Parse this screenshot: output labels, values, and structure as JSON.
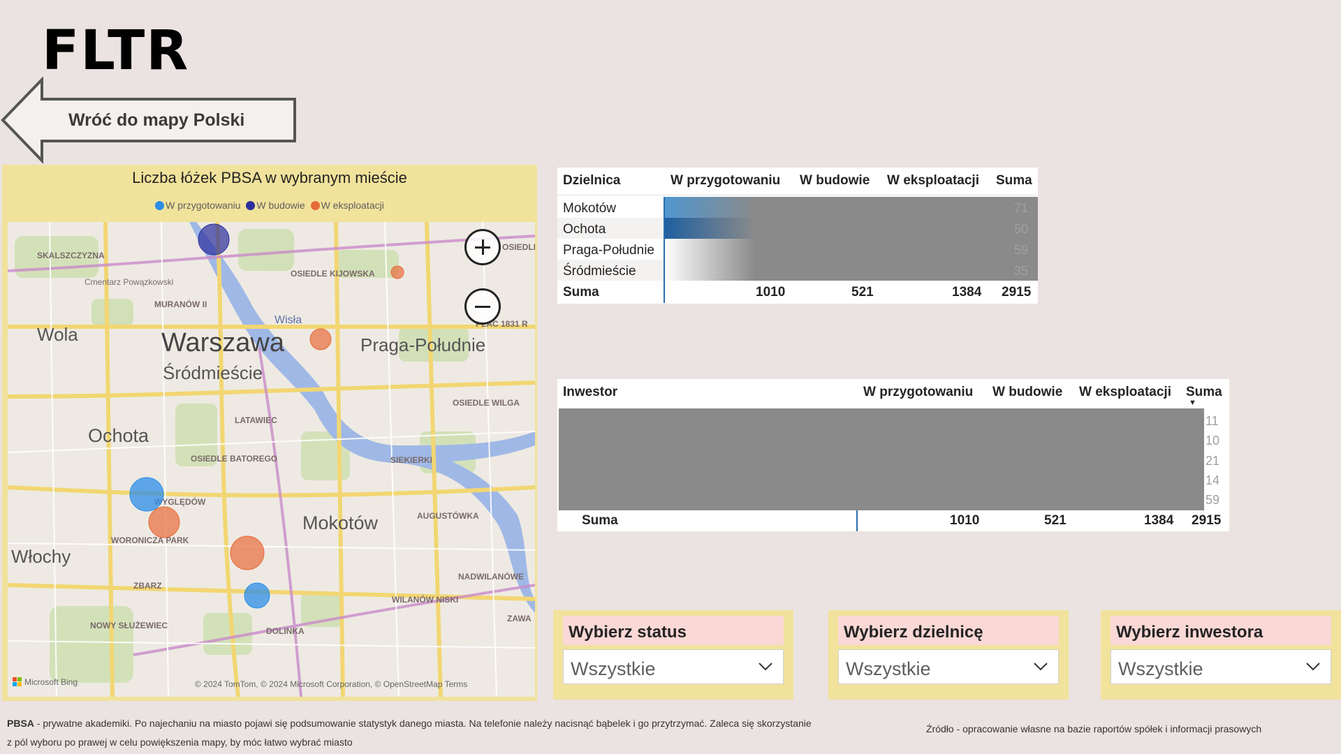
{
  "header": {
    "logo": "FLTR",
    "back_label": "Wróć do mapy Polski"
  },
  "colors": {
    "prep": "#2c8de8",
    "build": "#2c2f9e",
    "expl": "#e86b3a",
    "panel": "#f1e29c",
    "slicer_head": "#f9d8d6"
  },
  "map": {
    "title": "Liczba łóżek PBSA w wybranym mieście",
    "legend": [
      {
        "label": "W przygotowaniu",
        "color": "#2c8de8"
      },
      {
        "label": "W budowie",
        "color": "#2c2f9e"
      },
      {
        "label": "W eksploatacji",
        "color": "#e86b3a"
      }
    ],
    "places": {
      "warszawa": "Warszawa",
      "srodmiescie": "Śródmieście",
      "wola": "Wola",
      "ochota": "Ochota",
      "praga": "Praga-Południe",
      "mokotow": "Mokotów",
      "wlochy": "Włochy",
      "wisla": "Wisła",
      "skalszczyzna": "SKALSZCZYZNA",
      "cmentarz": "Cmentarz Powązkowski",
      "muranow": "MURANÓW II",
      "kijowska": "OSIEDLE KIJOWSKA",
      "latawiec": "LATAWIEC",
      "batorego": "OSIEDLE BATOREGO",
      "siekierki": "SIEKIERKI",
      "wilga": "OSIEDLE WILGA",
      "wygledow": "WYGLĘDÓW",
      "woronicza": "WORONICZA PARK",
      "augustowka": "AUGUSTÓWKA",
      "zbarz": "ZBARZ",
      "nadwilanowe": "NADWILANÓWE",
      "wilanow": "WILANÓW NISKI",
      "sluzewiec": "NOWY SŁUŻEWIEC",
      "dolinka": "DOLINKA",
      "plac": "PLAC 1831 R",
      "zawa": "ZAWA",
      "sobieskiego": "OSIEDLE ZJAZD"
    },
    "attribution": "© 2024 TomTom, © 2024 Microsoft Corporation, © OpenStreetMap  Terms",
    "bing": "Microsoft Bing"
  },
  "table1": {
    "headers": [
      "Dzielnica",
      "W przygotowaniu",
      "W budowie",
      "W eksploatacji",
      "Suma"
    ],
    "rows": [
      "Mokotów",
      "Ochota",
      "Praga-Południe",
      "Śródmieście"
    ],
    "row_suma_tail": [
      "71",
      "50",
      "59",
      "35"
    ],
    "total": {
      "label": "Suma",
      "prep": "1010",
      "build": "521",
      "expl": "1384",
      "sum": "2915"
    }
  },
  "table2": {
    "headers": [
      "Inwestor",
      "W przygotowaniu",
      "W budowie",
      "W eksploatacji",
      "Suma"
    ],
    "row_suma_tail": [
      "11",
      "10",
      "21",
      "14",
      "59"
    ],
    "total": {
      "label": "Suma",
      "prep": "1010",
      "build": "521",
      "expl": "1384",
      "sum": "2915"
    }
  },
  "slicers": [
    {
      "title": "Wybierz status",
      "value": "Wszystkie"
    },
    {
      "title": "Wybierz dzielnicę",
      "value": "Wszystkie"
    },
    {
      "title": "Wybierz inwestora",
      "value": "Wszystkie"
    }
  ],
  "footer": {
    "note_bold": "PBSA",
    "note_line1": " - prywatne akademiki. Po najechaniu na miasto pojawi się podsumowanie statystyk danego miasta. Na telefonie należy nacisnąć bąbelek i go przytrzymać. Zaleca się skorzystanie",
    "note_line2": "z pól wyboru po prawej w celu powiększenia mapy, by móc łatwo wybrać miasto",
    "source": "Źródło - opracowanie własne na bazie raportów spółek i informacji prasowych"
  }
}
